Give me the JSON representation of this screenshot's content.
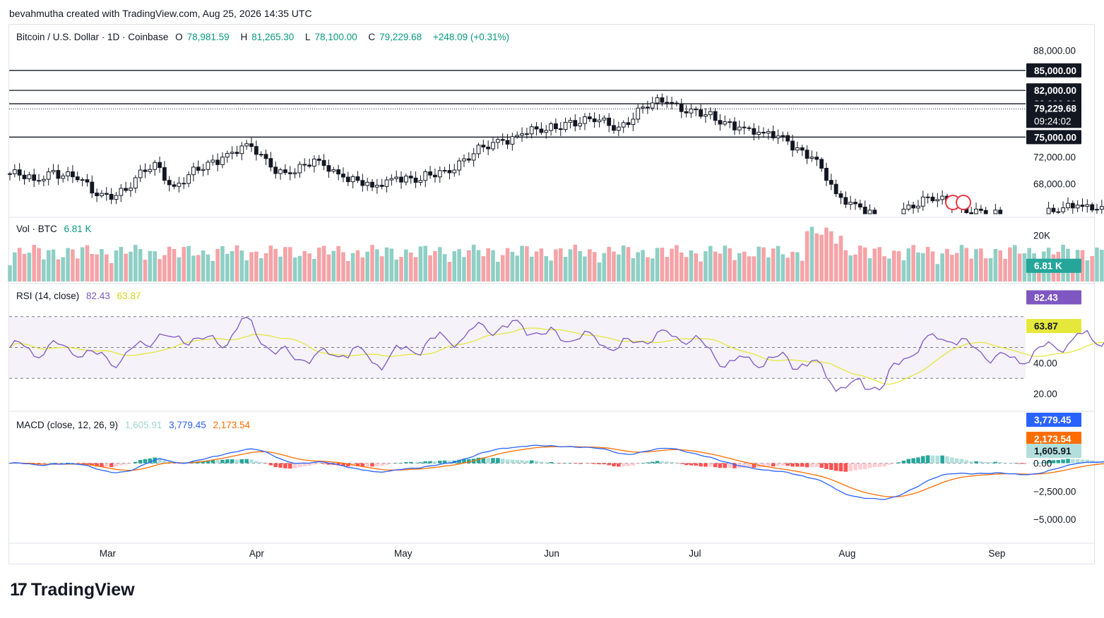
{
  "header": {
    "attribution": "bevahmutha created with TradingView.com, Aug 25, 2026 14:35 UTC"
  },
  "price_legend": {
    "symbol": "Bitcoin / U.S. Dollar · 1D · Coinbase",
    "o_label": "O",
    "o_value": "78,981.59",
    "h_label": "H",
    "h_value": "81,265.30",
    "l_label": "L",
    "l_value": "78,100.00",
    "c_label": "C",
    "c_value": "79,229.68",
    "change": "+248.09 (+0.31%)"
  },
  "vol_legend": {
    "label": "Vol · BTC",
    "value": "6.81 K"
  },
  "rsi_legend": {
    "label": "RSI (14, close)",
    "rsi": "82.43",
    "ma": "63.87"
  },
  "macd_legend": {
    "label": "MACD (close, 12, 26, 9)",
    "hist": "1,605.91",
    "macd": "3,779.45",
    "signal": "2,173.54"
  },
  "price_axis": [
    "88,000.00",
    "72,000.00",
    "68,000.00"
  ],
  "price_markers": {
    "levels": [
      "85,000.00",
      "82,000.00",
      "80,000.00",
      "75,000.00"
    ],
    "last": "79,229.68",
    "countdown": "09:24:02"
  },
  "vol_axis": {
    "tick": "20K",
    "last": "6.81 K"
  },
  "rsi_axis": {
    "ticks": [
      "40.00",
      "20.00"
    ],
    "rsi_tag": "82.43",
    "ma_tag": "63.87"
  },
  "macd_axis": {
    "ticks": [
      "0.00",
      "−2,500.00",
      "−5,000.00"
    ],
    "macd_tag": "3,779.45",
    "signal_tag": "2,173.54",
    "hist_tag": "1,605.91"
  },
  "time_axis": [
    "Mar",
    "Apr",
    "May",
    "Jun",
    "Jul",
    "Aug",
    "Sep"
  ],
  "footer": {
    "brand": "TradingView"
  },
  "colors": {
    "up": "#089981",
    "down": "#f23645",
    "rsi": "#7e57c2",
    "rsi_ma": "#e5e83b",
    "macd": "#2962ff",
    "signal": "#ff6d00"
  },
  "chart_data": {
    "type": "candlestick",
    "symbol": "Bitcoin / U.S. Dollar",
    "interval": "1D",
    "exchange": "Coinbase",
    "horizontal_levels": [
      85000,
      82000,
      80000,
      75000
    ],
    "close_anchors": [
      {
        "d": 0,
        "c": 69500
      },
      {
        "d": 5,
        "c": 68500
      },
      {
        "d": 9,
        "c": 70000
      },
      {
        "d": 14,
        "c": 68600
      },
      {
        "d": 18,
        "c": 66200
      },
      {
        "d": 24,
        "c": 67000
      },
      {
        "d": 30,
        "c": 71200
      },
      {
        "d": 34,
        "c": 67600
      },
      {
        "d": 39,
        "c": 70000
      },
      {
        "d": 44,
        "c": 72000
      },
      {
        "d": 49,
        "c": 74000
      },
      {
        "d": 54,
        "c": 70500
      },
      {
        "d": 58,
        "c": 69500
      },
      {
        "d": 64,
        "c": 71500
      },
      {
        "d": 69,
        "c": 69000
      },
      {
        "d": 75,
        "c": 67500
      },
      {
        "d": 80,
        "c": 69000
      },
      {
        "d": 85,
        "c": 68500
      },
      {
        "d": 90,
        "c": 70000
      },
      {
        "d": 96,
        "c": 72500
      },
      {
        "d": 102,
        "c": 74500
      },
      {
        "d": 106,
        "c": 75500
      },
      {
        "d": 111,
        "c": 76000
      },
      {
        "d": 116,
        "c": 77500
      },
      {
        "d": 121,
        "c": 77300
      },
      {
        "d": 126,
        "c": 76500
      },
      {
        "d": 131,
        "c": 79500
      },
      {
        "d": 136,
        "c": 80200
      },
      {
        "d": 141,
        "c": 79200
      },
      {
        "d": 146,
        "c": 77500
      },
      {
        "d": 151,
        "c": 76500
      },
      {
        "d": 156,
        "c": 75600
      },
      {
        "d": 161,
        "c": 74400
      },
      {
        "d": 166,
        "c": 72000
      },
      {
        "d": 171,
        "c": 66500
      },
      {
        "d": 176,
        "c": 64500
      },
      {
        "d": 181,
        "c": 62000
      },
      {
        "d": 186,
        "c": 64800
      },
      {
        "d": 190,
        "c": 66000
      },
      {
        "d": 195,
        "c": 64600
      },
      {
        "d": 201,
        "c": 64000
      },
      {
        "d": 206,
        "c": 62500
      },
      {
        "d": 210,
        "c": 62000
      },
      {
        "d": 216,
        "c": 63800
      },
      {
        "d": 221,
        "c": 64800
      },
      {
        "d": 226,
        "c": 64600
      },
      {
        "d": 231,
        "c": 65100
      },
      {
        "d": 236,
        "c": 65300
      },
      {
        "d": 241,
        "c": 65800
      },
      {
        "d": 246,
        "c": 65400
      },
      {
        "d": 251,
        "c": 64500
      },
      {
        "d": 256,
        "c": 64700
      },
      {
        "d": 261,
        "c": 64500
      },
      {
        "d": 266,
        "c": 64400
      },
      {
        "d": 271,
        "c": 64600
      },
      {
        "d": 276,
        "c": 64800
      },
      {
        "d": 281,
        "c": 64300
      },
      {
        "d": 285,
        "c": 64000
      },
      {
        "d": 288,
        "c": 66300
      },
      {
        "d": 289,
        "c": 69500
      },
      {
        "d": 290,
        "c": 72500
      },
      {
        "d": 291,
        "c": 77500
      },
      {
        "d": 292,
        "c": 78500
      },
      {
        "d": 293,
        "c": 77200
      },
      {
        "d": 295,
        "c": 78700
      },
      {
        "d": 297,
        "c": 79230
      }
    ],
    "price_range": [
      63500,
      89000
    ],
    "rsi_range": [
      10,
      90
    ],
    "macd_range": [
      -6500,
      4500
    ],
    "volume_range": [
      0,
      26000
    ]
  }
}
